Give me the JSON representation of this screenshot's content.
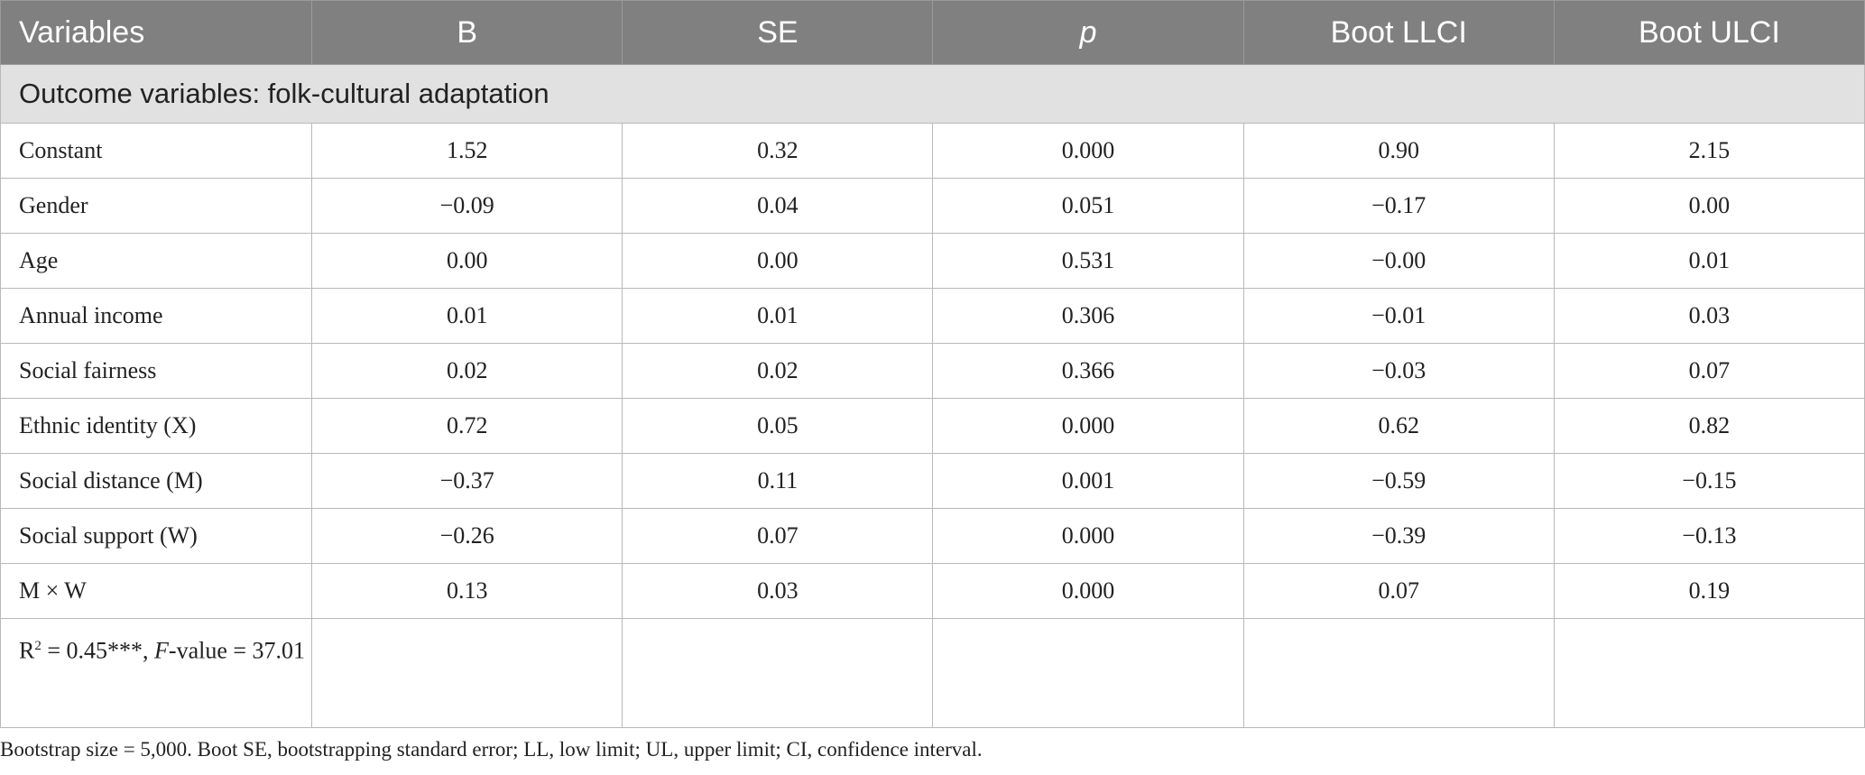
{
  "table": {
    "headers": [
      "Variables",
      "B",
      "SE",
      "p",
      "Boot LLCI",
      "Boot ULCI"
    ],
    "section_title": "Outcome variables: folk-cultural adaptation",
    "rows": [
      {
        "label": "Constant",
        "b": "1.52",
        "se": "0.32",
        "p": "0.000",
        "llci": "0.90",
        "ulci": "2.15"
      },
      {
        "label": "Gender",
        "b": "−0.09",
        "se": "0.04",
        "p": "0.051",
        "llci": "−0.17",
        "ulci": "0.00"
      },
      {
        "label": "Age",
        "b": "0.00",
        "se": "0.00",
        "p": "0.531",
        "llci": "−0.00",
        "ulci": "0.01"
      },
      {
        "label": "Annual income",
        "b": "0.01",
        "se": "0.01",
        "p": "0.306",
        "llci": "−0.01",
        "ulci": "0.03"
      },
      {
        "label": "Social fairness",
        "b": "0.02",
        "se": "0.02",
        "p": "0.366",
        "llci": "−0.03",
        "ulci": "0.07"
      },
      {
        "label": "Ethnic identity (X)",
        "b": "0.72",
        "se": "0.05",
        "p": "0.000",
        "llci": "0.62",
        "ulci": "0.82"
      },
      {
        "label": "Social distance (M)",
        "b": "−0.37",
        "se": "0.11",
        "p": "0.001",
        "llci": "−0.59",
        "ulci": "−0.15"
      },
      {
        "label": "Social support (W)",
        "b": "−0.26",
        "se": "0.07",
        "p": "0.000",
        "llci": "−0.39",
        "ulci": "−0.13"
      },
      {
        "label": "M × W",
        "b": "0.13",
        "se": "0.03",
        "p": "0.000",
        "llci": "0.07",
        "ulci": "0.19"
      }
    ],
    "summary": {
      "r_base": "R",
      "r_sup": "2",
      "r_value": " = 0.45***, ",
      "f_label": "F",
      "f_value": "-value = 37.01"
    }
  },
  "footnote": "Bootstrap size = 5,000. Boot SE, bootstrapping standard error; LL, low limit; UL, upper limit; CI, confidence interval."
}
